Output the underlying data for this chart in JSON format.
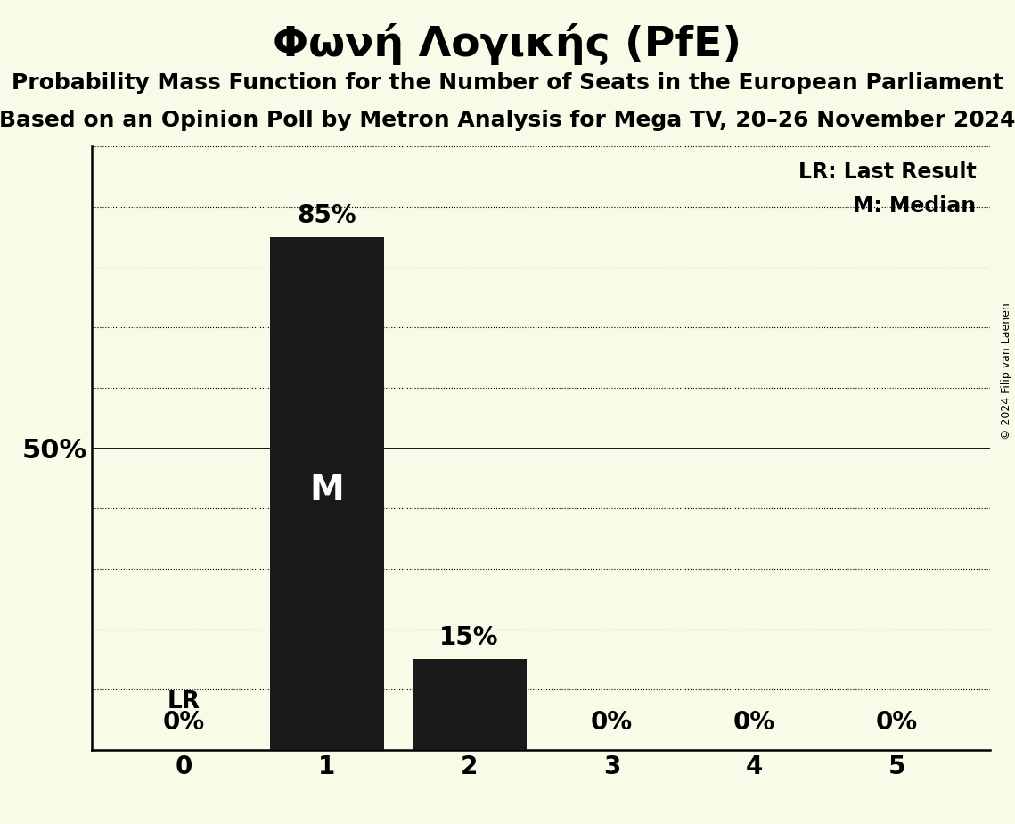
{
  "title": "Φωνή Λογικής (PfE)",
  "subtitle1": "Probability Mass Function for the Number of Seats in the European Parliament",
  "subtitle2": "Based on an Opinion Poll by Metron Analysis for Mega TV, 20–26 November 2024",
  "copyright": "© 2024 Filip van Laenen",
  "x_values": [
    0,
    1,
    2,
    3,
    4,
    5
  ],
  "y_values": [
    0,
    85,
    15,
    0,
    0,
    0
  ],
  "bar_color": "#1a1a1a",
  "background_color": "#fafae8",
  "median_bar": 1,
  "last_result_bar": 0,
  "legend_lr": "LR: Last Result",
  "legend_m": "M: Median",
  "ylim": [
    0,
    100
  ],
  "yticks": [
    0,
    10,
    20,
    30,
    40,
    50,
    60,
    70,
    80,
    90,
    100
  ],
  "title_fontsize": 34,
  "subtitle_fontsize": 18,
  "axis_tick_fontsize": 20,
  "bar_label_fontsize": 20,
  "legend_fontsize": 17,
  "copyright_fontsize": 9,
  "ylabel_50_fontsize": 22
}
